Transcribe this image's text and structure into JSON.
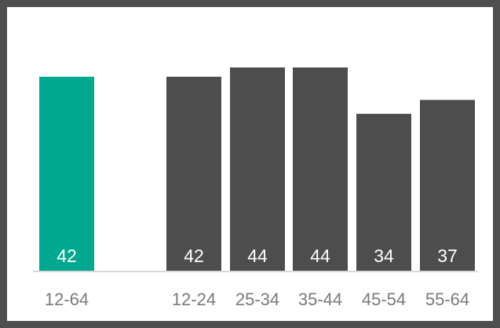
{
  "chart_data": {
    "type": "bar",
    "categories": [
      "12-64",
      "12-24",
      "25-34",
      "35-44",
      "45-54",
      "55-64"
    ],
    "values": [
      42,
      42,
      44,
      44,
      34,
      37
    ],
    "bar_colors": [
      "#00a88f",
      "#4d4d4d",
      "#4d4d4d",
      "#4d4d4d",
      "#4d4d4d",
      "#4d4d4d"
    ],
    "value_label_color": "#ffffff",
    "category_label_color": "#7a7a7a",
    "frame_color": "#4f4f4f",
    "title": "",
    "xlabel": "",
    "ylabel": "",
    "ylim": [
      0,
      50
    ],
    "grid": false,
    "legend": "none"
  }
}
